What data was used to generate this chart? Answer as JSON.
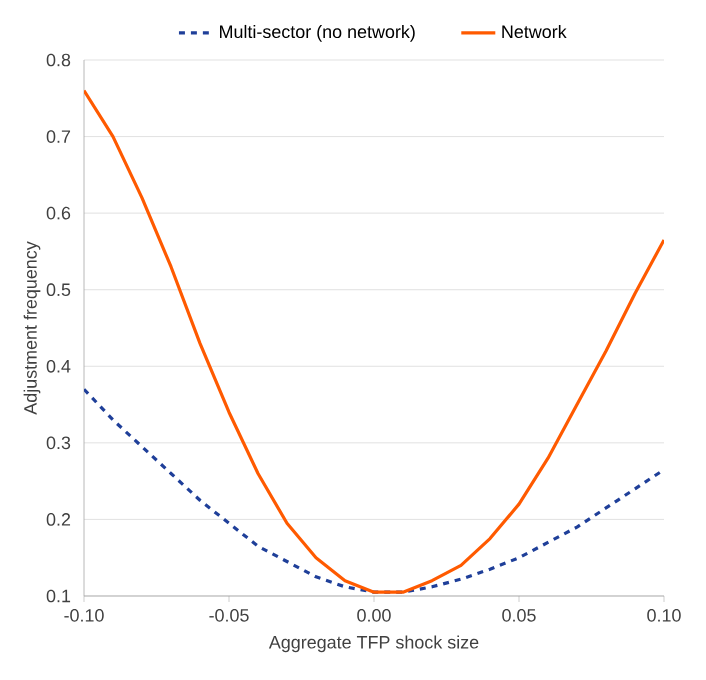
{
  "chart_data": {
    "type": "line",
    "xlabel": "Aggregate TFP shock size",
    "ylabel": "Adjustment frequency",
    "x": [
      -0.1,
      -0.09,
      -0.08,
      -0.07,
      -0.06,
      -0.05,
      -0.04,
      -0.03,
      -0.02,
      -0.01,
      0.0,
      0.01,
      0.02,
      0.03,
      0.04,
      0.05,
      0.06,
      0.07,
      0.08,
      0.09,
      0.1
    ],
    "series": [
      {
        "name": "Multi-sector (no network)",
        "color": "#1f3f99",
        "line_style": "dashed",
        "values": [
          0.37,
          0.33,
          0.295,
          0.26,
          0.225,
          0.195,
          0.165,
          0.145,
          0.125,
          0.112,
          0.105,
          0.105,
          0.112,
          0.122,
          0.135,
          0.15,
          0.17,
          0.19,
          0.215,
          0.24,
          0.265
        ]
      },
      {
        "name": "Network",
        "color": "#ff5a00",
        "line_style": "solid",
        "values": [
          0.76,
          0.7,
          0.62,
          0.53,
          0.43,
          0.34,
          0.26,
          0.195,
          0.15,
          0.12,
          0.105,
          0.105,
          0.12,
          0.14,
          0.175,
          0.22,
          0.28,
          0.35,
          0.42,
          0.495,
          0.565
        ]
      }
    ],
    "xlim": [
      -0.1,
      0.1
    ],
    "ylim": [
      0.1,
      0.8
    ],
    "xticks": [
      {
        "value": -0.1,
        "label": "-0.10"
      },
      {
        "value": -0.05,
        "label": "-0.05"
      },
      {
        "value": 0.0,
        "label": "0.00"
      },
      {
        "value": 0.05,
        "label": "0.05"
      },
      {
        "value": 0.1,
        "label": "0.10"
      }
    ],
    "yticks": [
      0.1,
      0.2,
      0.3,
      0.4,
      0.5,
      0.6,
      0.7,
      0.8
    ],
    "grid": "y",
    "legend": "top",
    "marker": "none"
  }
}
